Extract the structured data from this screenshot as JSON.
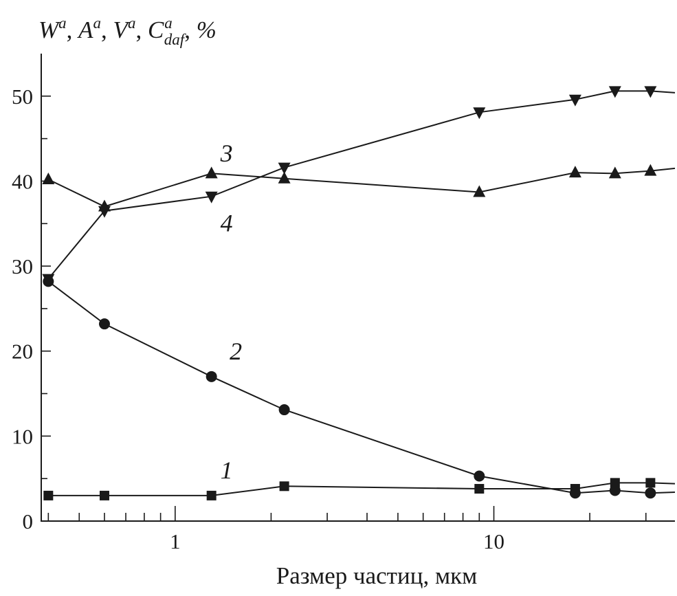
{
  "chart_data": {
    "type": "line",
    "ylabel": {
      "w": "W",
      "a": "A",
      "v": "V",
      "c": "C",
      "sup": "a",
      "sub": "daf",
      "sep": ", ",
      "unit": "%"
    },
    "xlabel": "Размер частиц, мкм",
    "xscale": "log",
    "xlim": [
      0.38,
      37
    ],
    "ylim": [
      0,
      55
    ],
    "yticks_major": [
      0,
      10,
      20,
      30,
      40,
      50
    ],
    "yticks_minor": [
      5,
      15,
      25,
      35,
      45
    ],
    "xtick_labels": [
      "1",
      "10"
    ],
    "grid": false,
    "series": [
      {
        "name": "1",
        "marker": "square",
        "x": [
          0.4,
          0.6,
          1.3,
          2.2,
          9,
          18,
          24,
          31,
          37
        ],
        "y": [
          3.0,
          3.0,
          3.0,
          4.1,
          3.8,
          3.8,
          4.5,
          4.5,
          4.4
        ]
      },
      {
        "name": "2",
        "marker": "circle",
        "x": [
          0.4,
          0.6,
          1.3,
          2.2,
          9,
          18,
          24,
          31,
          37
        ],
        "y": [
          28.2,
          23.2,
          17.0,
          13.1,
          5.3,
          3.3,
          3.6,
          3.3,
          3.4
        ]
      },
      {
        "name": "3",
        "marker": "triangle-up",
        "x": [
          0.4,
          0.6,
          1.3,
          2.2,
          9,
          18,
          24,
          31,
          37
        ],
        "y": [
          40.2,
          37.0,
          40.9,
          40.3,
          38.7,
          41.0,
          40.9,
          41.2,
          41.5
        ]
      },
      {
        "name": "4",
        "marker": "triangle-down",
        "x": [
          0.4,
          0.6,
          1.3,
          2.2,
          9,
          18,
          24,
          31,
          37
        ],
        "y": [
          28.5,
          36.5,
          38.2,
          41.6,
          48.1,
          49.6,
          50.6,
          50.6,
          50.4
        ]
      }
    ],
    "annotations": [
      {
        "text": "1",
        "x": 1.45,
        "y": 5.0
      },
      {
        "text": "2",
        "x": 1.55,
        "y": 19.0
      },
      {
        "text": "3",
        "x": 1.45,
        "y": 42.3
      },
      {
        "text": "4",
        "x": 1.45,
        "y": 34.1
      }
    ]
  }
}
